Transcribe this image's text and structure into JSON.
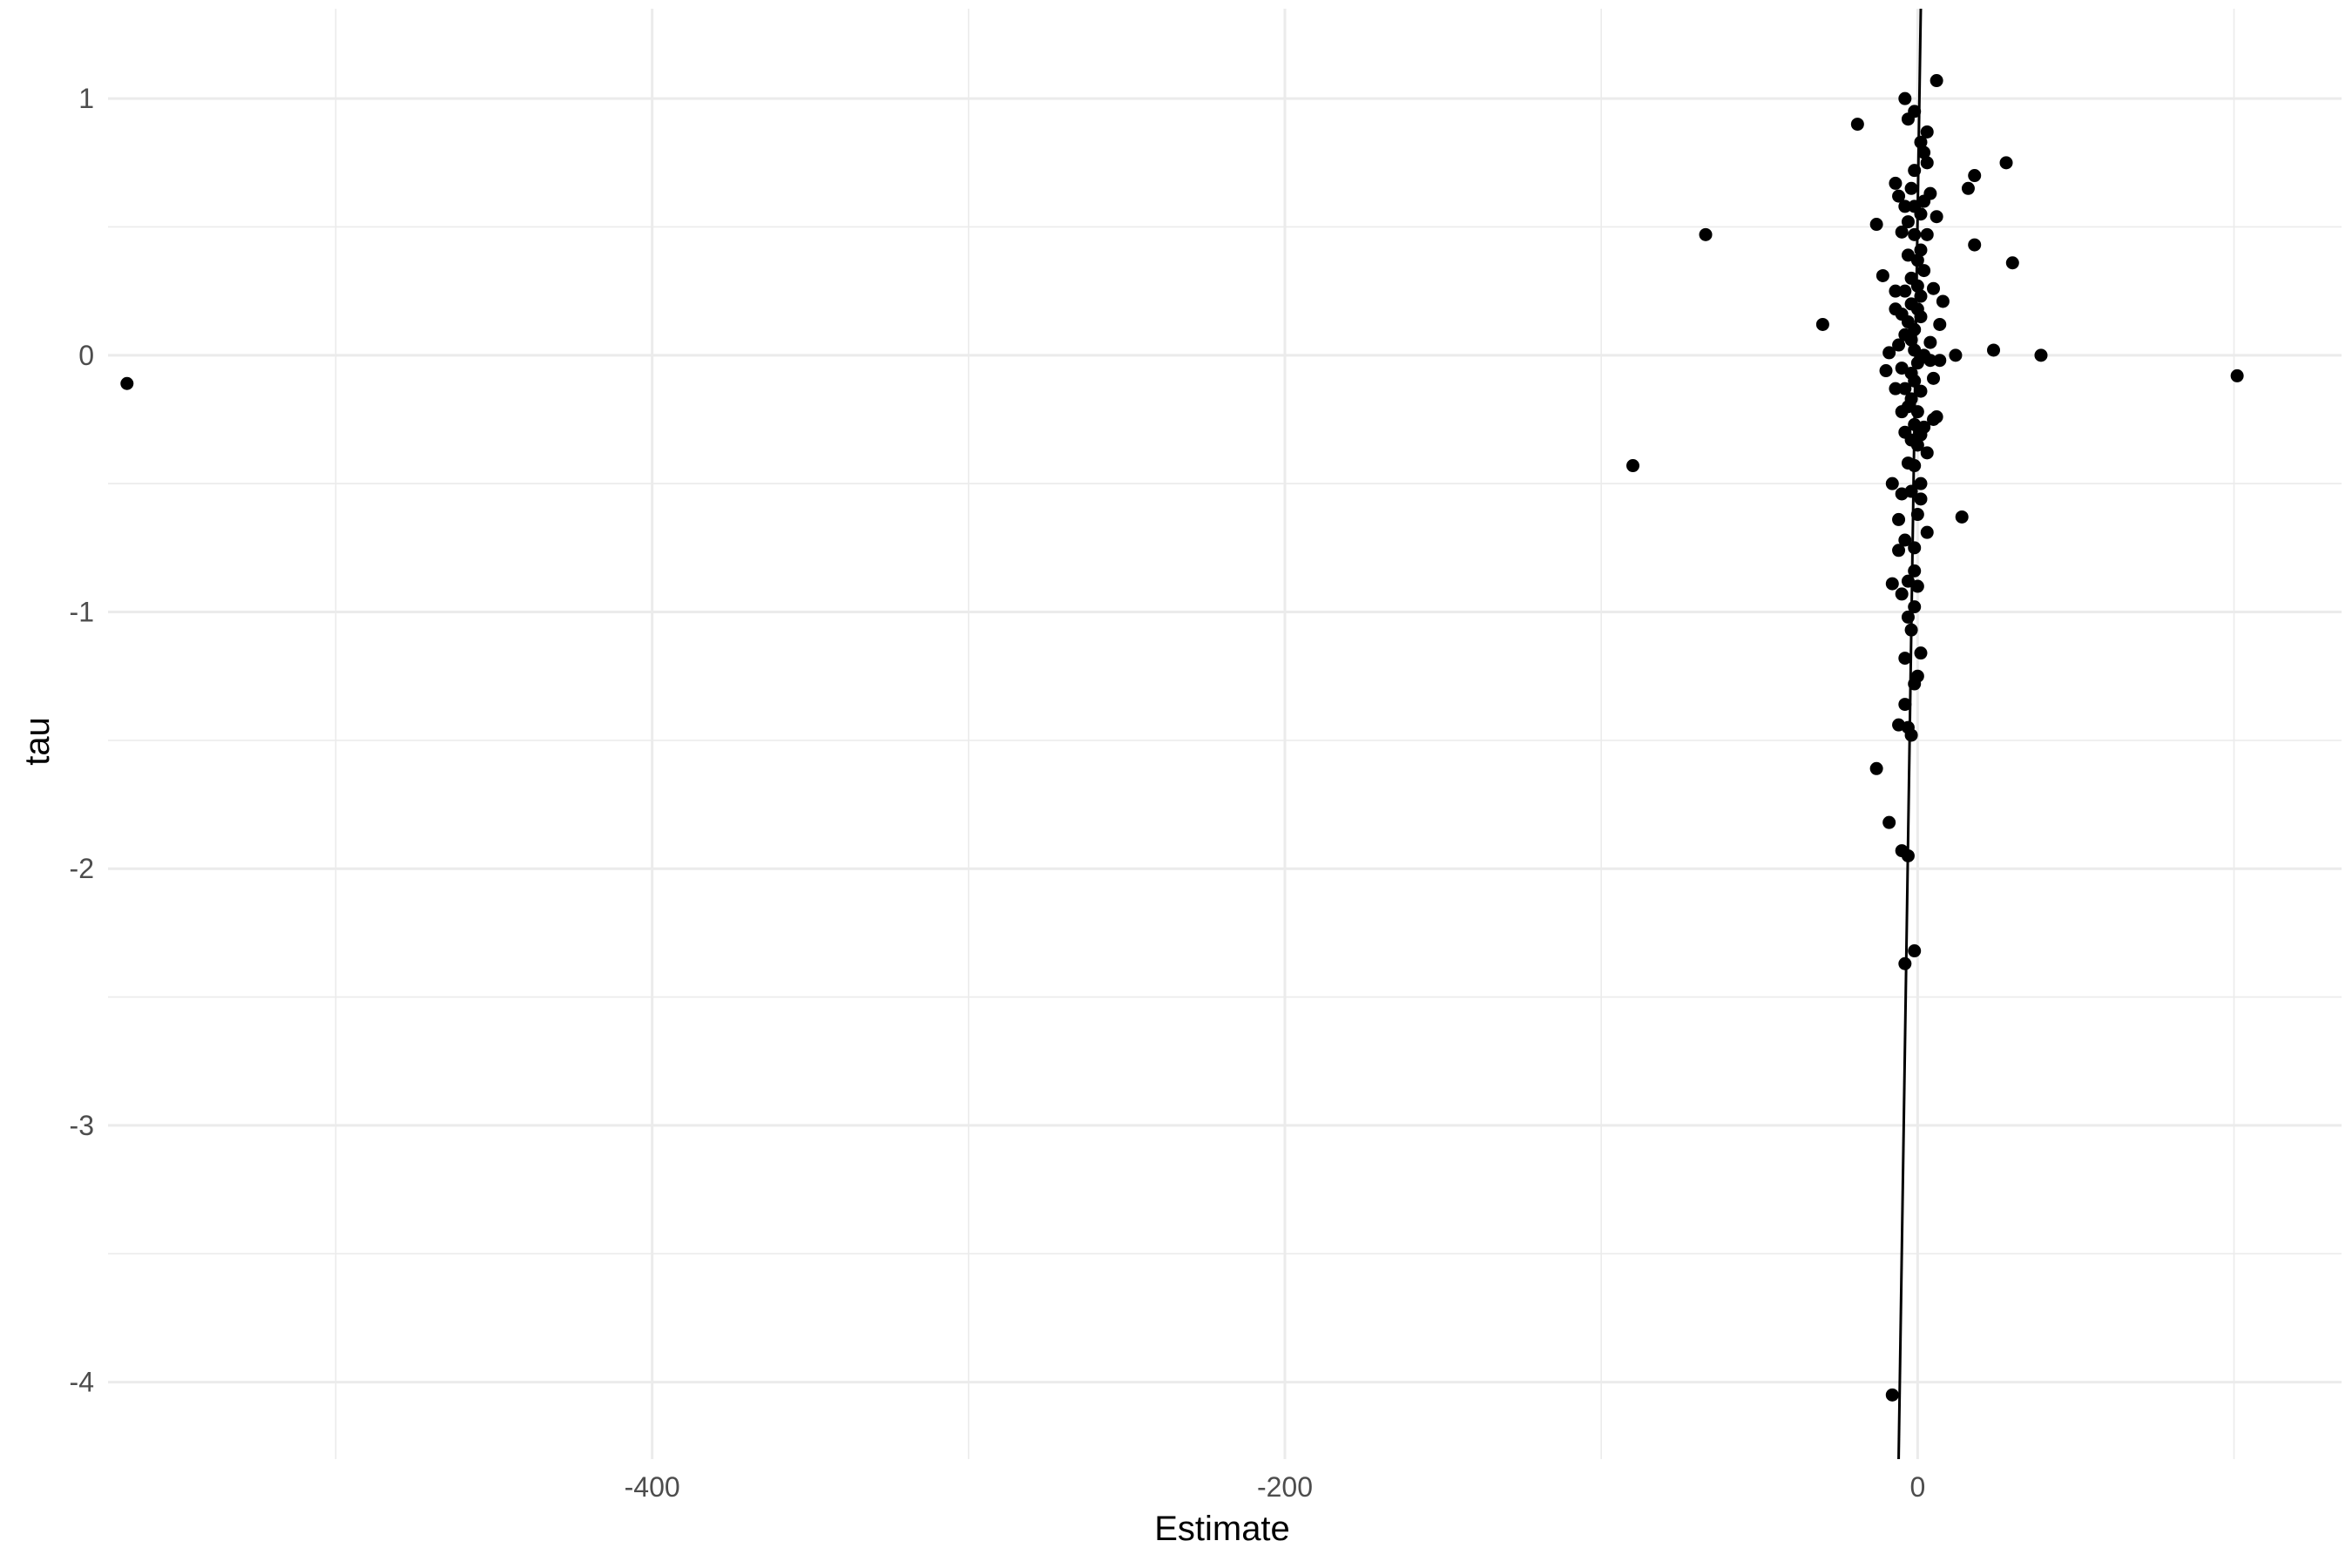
{
  "chart_data": {
    "type": "scatter",
    "title": "",
    "xlabel": "Estimate",
    "ylabel": "tau",
    "xlim": [
      -572,
      134
    ],
    "ylim": [
      -4.3,
      1.35
    ],
    "x_ticks": [
      -400,
      -200,
      0
    ],
    "x_tick_labels": [
      "-400",
      "-200",
      "0"
    ],
    "y_ticks": [
      1,
      0,
      -1,
      -2,
      -3,
      -4
    ],
    "y_tick_labels": [
      "1",
      "0",
      "-1",
      "-2",
      "-3",
      "-4"
    ],
    "grid": true,
    "legend": "none",
    "colors": {
      "point": "#000000",
      "grid": "#ebebeb",
      "line": "#000000",
      "background": "#ffffff"
    },
    "reference_line": {
      "x": [
        -6,
        1
      ],
      "y": [
        -4.3,
        1.35
      ]
    },
    "points": [
      [
        -566,
        -0.11
      ],
      [
        -90,
        -0.43
      ],
      [
        -67,
        0.47
      ],
      [
        -30,
        0.12
      ],
      [
        -19,
        0.9
      ],
      [
        -13,
        0.51
      ],
      [
        -11,
        0.31
      ],
      [
        101,
        -0.08
      ],
      [
        39,
        0.0
      ],
      [
        30,
        0.36
      ],
      [
        28,
        0.75
      ],
      [
        24,
        0.02
      ],
      [
        18,
        0.43
      ],
      [
        18,
        0.7
      ],
      [
        16,
        0.65
      ],
      [
        14,
        -0.63
      ],
      [
        12,
        0.0
      ],
      [
        8,
        0.21
      ],
      [
        7,
        0.12
      ],
      [
        6,
        0.54
      ],
      [
        6,
        -0.24
      ],
      [
        5,
        -0.25
      ],
      [
        5,
        0.26
      ],
      [
        4,
        0.63
      ],
      [
        4,
        0.05
      ],
      [
        3,
        -0.38
      ],
      [
        3,
        -0.69
      ],
      [
        3,
        0.87
      ],
      [
        3,
        0.75
      ],
      [
        6,
        1.07
      ],
      [
        2,
        0.79
      ],
      [
        2,
        0.6
      ],
      [
        1,
        0.83
      ],
      [
        1,
        0.55
      ],
      [
        1,
        0.41
      ],
      [
        1,
        0.23
      ],
      [
        1,
        0.15
      ],
      [
        1,
        -0.01
      ],
      [
        1,
        -0.14
      ],
      [
        1,
        -0.31
      ],
      [
        1,
        -0.5
      ],
      [
        1,
        -0.56
      ],
      [
        1,
        -1.16
      ],
      [
        0,
        0.37
      ],
      [
        0,
        0.27
      ],
      [
        0,
        0.18
      ],
      [
        0,
        -0.03
      ],
      [
        0,
        -0.22
      ],
      [
        0,
        -0.35
      ],
      [
        0,
        -0.62
      ],
      [
        0,
        -0.9
      ],
      [
        0,
        -1.25
      ],
      [
        -1,
        0.95
      ],
      [
        -1,
        0.72
      ],
      [
        -1,
        0.58
      ],
      [
        -1,
        0.47
      ],
      [
        -1,
        0.1
      ],
      [
        -1,
        0.02
      ],
      [
        -1,
        -0.1
      ],
      [
        -1,
        -0.27
      ],
      [
        -1,
        -0.43
      ],
      [
        -1,
        -0.75
      ],
      [
        -1,
        -0.84
      ],
      [
        -1,
        -0.98
      ],
      [
        -1,
        -1.28
      ],
      [
        -1,
        -2.32
      ],
      [
        -2,
        0.65
      ],
      [
        -2,
        0.3
      ],
      [
        -2,
        0.2
      ],
      [
        -2,
        0.06
      ],
      [
        -2,
        -0.07
      ],
      [
        -2,
        -0.17
      ],
      [
        -2,
        -0.33
      ],
      [
        -2,
        -0.53
      ],
      [
        -2,
        -1.07
      ],
      [
        -2,
        -1.48
      ],
      [
        -3,
        0.92
      ],
      [
        -3,
        0.52
      ],
      [
        -3,
        0.39
      ],
      [
        -3,
        0.13
      ],
      [
        -3,
        -0.2
      ],
      [
        -3,
        -0.42
      ],
      [
        -3,
        -0.88
      ],
      [
        -3,
        -1.02
      ],
      [
        -3,
        -1.45
      ],
      [
        -3,
        -1.95
      ],
      [
        -4,
        1.0
      ],
      [
        -4,
        0.58
      ],
      [
        -4,
        0.25
      ],
      [
        -4,
        0.08
      ],
      [
        -4,
        -0.13
      ],
      [
        -4,
        -0.3
      ],
      [
        -4,
        -0.72
      ],
      [
        -4,
        -1.18
      ],
      [
        -4,
        -1.36
      ],
      [
        -4,
        -2.37
      ],
      [
        -5,
        0.48
      ],
      [
        -5,
        0.16
      ],
      [
        -5,
        -0.05
      ],
      [
        -5,
        -0.22
      ],
      [
        -5,
        -0.54
      ],
      [
        -5,
        -0.93
      ],
      [
        -5,
        -1.93
      ],
      [
        -6,
        0.62
      ],
      [
        -6,
        0.04
      ],
      [
        -6,
        -0.64
      ],
      [
        -6,
        -0.76
      ],
      [
        -6,
        -1.44
      ],
      [
        -7,
        0.67
      ],
      [
        -7,
        0.25
      ],
      [
        -7,
        0.18
      ],
      [
        -7,
        -0.13
      ],
      [
        -8,
        -0.5
      ],
      [
        -8,
        -0.89
      ],
      [
        -9,
        -1.82
      ],
      [
        -9,
        0.01
      ],
      [
        -10,
        -0.06
      ],
      [
        -8,
        -4.05
      ],
      [
        -13,
        -1.61
      ],
      [
        2,
        0.0
      ],
      [
        2,
        -0.28
      ],
      [
        2,
        0.33
      ],
      [
        3,
        0.47
      ],
      [
        4,
        -0.02
      ],
      [
        5,
        -0.09
      ],
      [
        7,
        -0.02
      ]
    ]
  }
}
